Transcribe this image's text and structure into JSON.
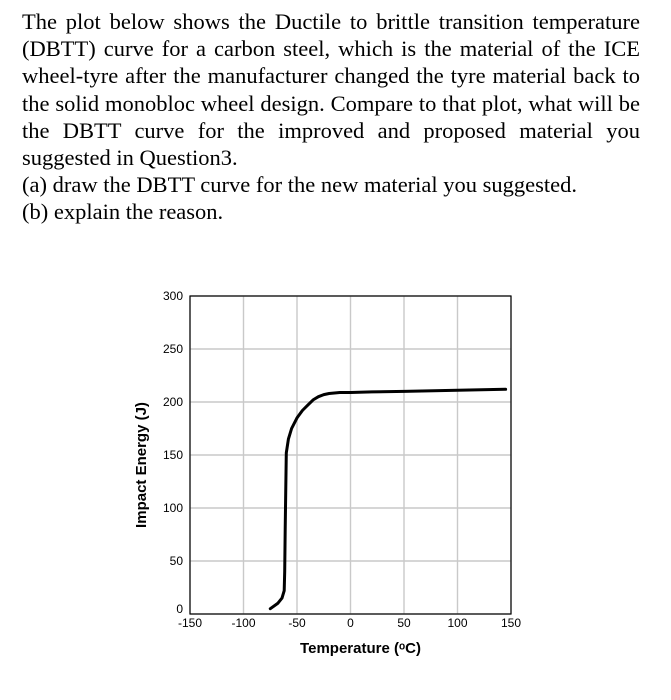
{
  "question": {
    "line1": "The plot below shows the Ductile to brittle transition temperature (DBTT) curve for a carbon steel, which is the material of the ICE wheel-tyre after the manufacturer changed the tyre material back to the solid monobloc wheel design. Compare to that plot, what will be the DBTT curve for the improved and proposed material you suggested in Question3.",
    "part_a": "(a) draw the DBTT curve for the new material you suggested.",
    "part_b": "(b) explain the reason."
  },
  "chart_data": {
    "type": "line",
    "title": "",
    "xlabel": "Temperature (ᵒC)",
    "ylabel": "Impact Energy (J)",
    "xlim": [
      -150,
      150
    ],
    "ylim": [
      0,
      300
    ],
    "xticks": [
      -150,
      -100,
      -50,
      0,
      50,
      100,
      150
    ],
    "yticks": [
      0,
      50,
      100,
      150,
      200,
      250,
      300
    ],
    "xtick_labels": [
      "-150",
      "-100",
      "-50",
      "0",
      "50",
      "100",
      "150"
    ],
    "ytick_labels": [
      "0",
      "50",
      "100",
      "150",
      "200",
      "250",
      "300"
    ],
    "grid": true,
    "legend": "none",
    "line_color": "#000000",
    "series": [
      {
        "x": [
          -75,
          -68,
          -64,
          -62,
          -61.5,
          -61,
          -60.5,
          -60,
          -58,
          -55,
          -50,
          -45,
          -40,
          -35,
          -30,
          -25,
          -20,
          -10,
          0,
          20,
          50,
          100,
          145
        ],
        "y": [
          5,
          10,
          15,
          22,
          40,
          80,
          120,
          152,
          165,
          175,
          185,
          192,
          197,
          202,
          205,
          207,
          208,
          209,
          209,
          209.5,
          210,
          211,
          212
        ]
      }
    ]
  }
}
